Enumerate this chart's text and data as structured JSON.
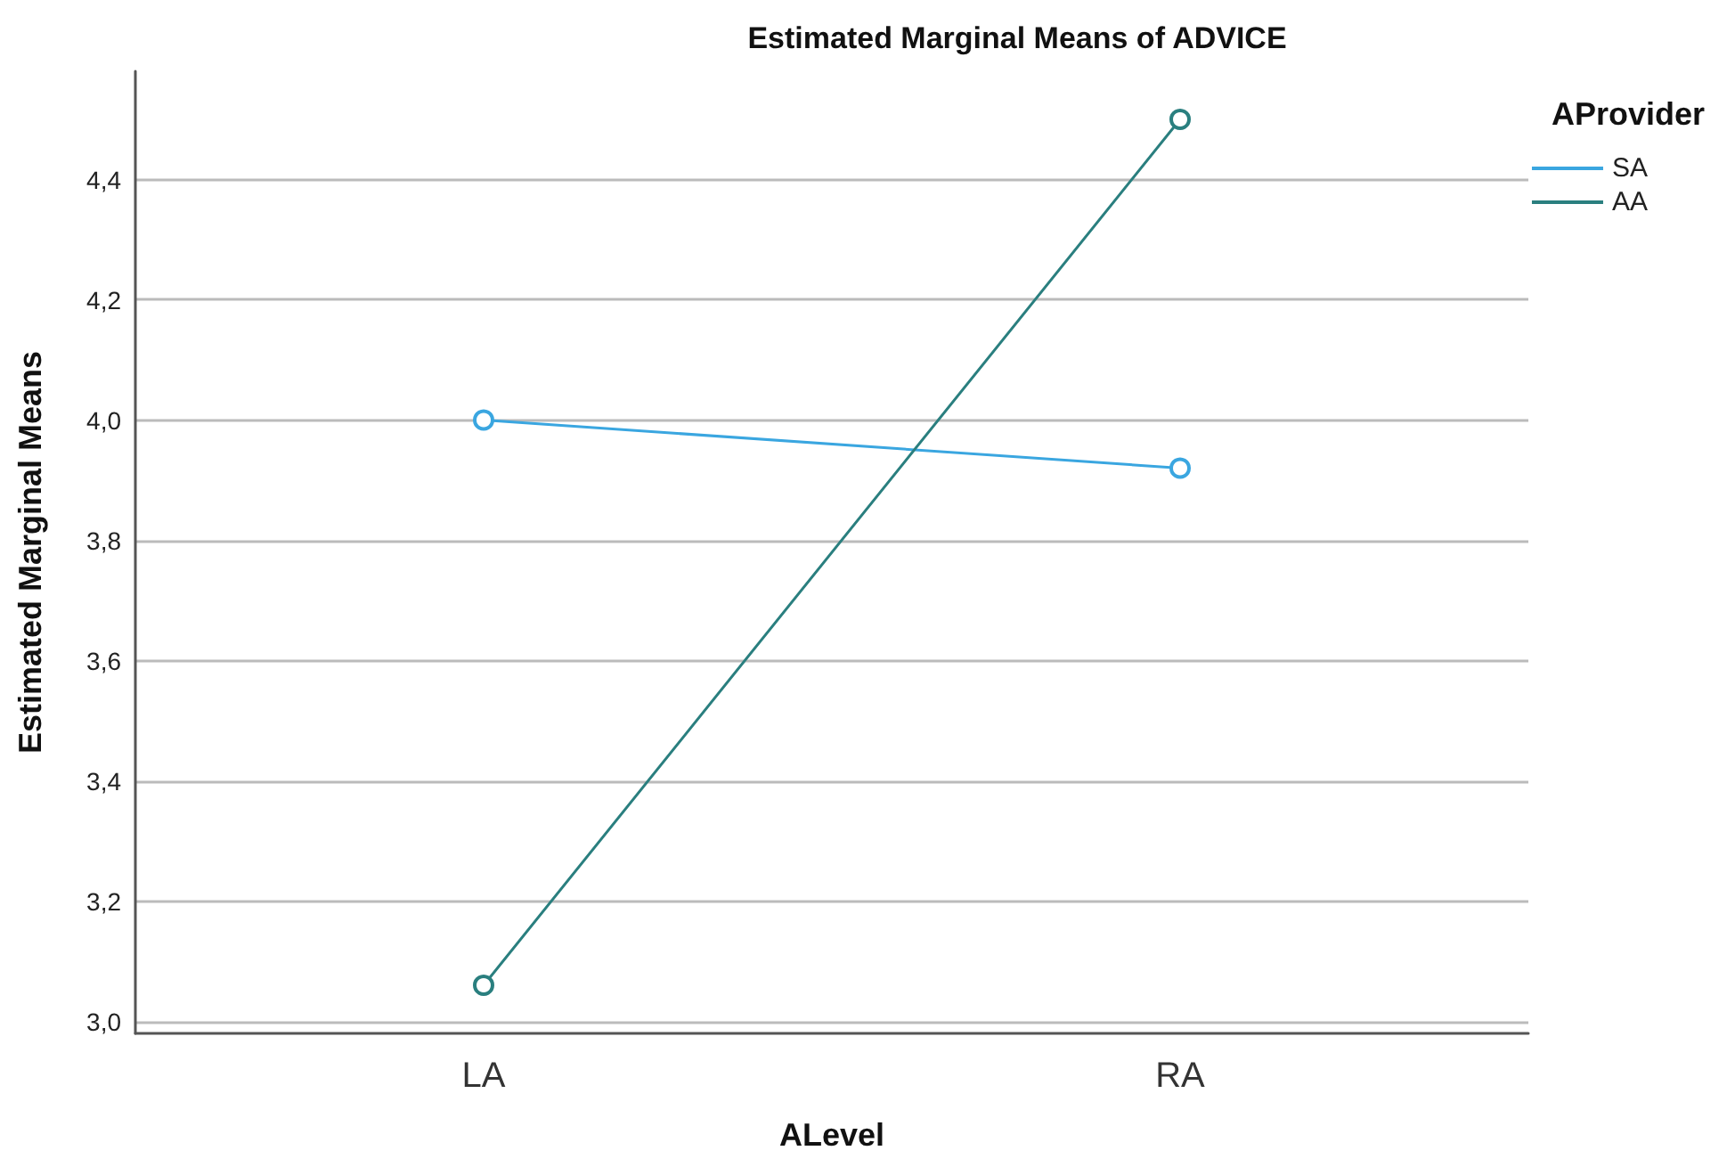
{
  "chart_data": {
    "type": "line",
    "title": "Estimated Marginal Means of ADVICE",
    "xlabel": "ALevel",
    "ylabel": "Estimated Marginal Means",
    "legend_title": "AProvider",
    "categories": [
      "LA",
      "RA"
    ],
    "series": [
      {
        "name": "SA",
        "color": "#3aa6e0",
        "values": [
          4.0,
          3.92
        ]
      },
      {
        "name": "AA",
        "color": "#2a7f7f",
        "values": [
          3.06,
          4.5
        ]
      }
    ],
    "ylim": [
      2.98,
      4.58
    ],
    "yticks": [
      {
        "value": 3.0,
        "label": "3,0"
      },
      {
        "value": 3.2,
        "label": "3,2"
      },
      {
        "value": 3.4,
        "label": "3,4"
      },
      {
        "value": 3.6,
        "label": "3,6"
      },
      {
        "value": 3.8,
        "label": "3,8"
      },
      {
        "value": 4.0,
        "label": "4,0"
      },
      {
        "value": 4.2,
        "label": "4,2"
      },
      {
        "value": 4.4,
        "label": "4,4"
      }
    ],
    "grid": "y",
    "legend": "top right",
    "marker": "circle",
    "line_style": "solid"
  }
}
